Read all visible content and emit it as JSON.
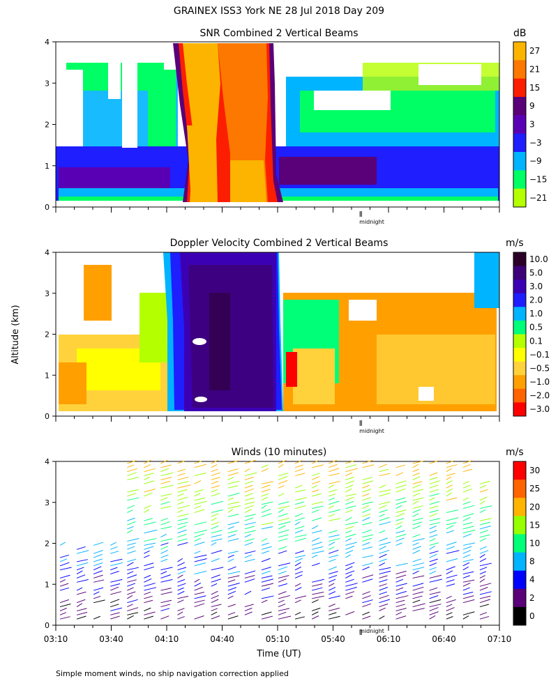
{
  "figure_title": "GRAINEX ISS3 York NE  28 Jul 2018 Day 209",
  "shared_y_label": "Altitude (km)",
  "time_label": "Time (UT)",
  "footnote": "Simple moment winds, no ship navigation correction applied",
  "midnight_label": "midnight",
  "chart_data": [
    {
      "type": "heatmap",
      "title": "SNR Combined 2 Vertical Beams",
      "colorbar_unit": "dB",
      "colorbar_ticks": [
        "27",
        "21",
        "15",
        "9",
        "3",
        "−3",
        "−9",
        "−15",
        "−21"
      ],
      "colorbar_colors": [
        "#fcb400",
        "#fc7800",
        "#fc1e00",
        "#5a0078",
        "#5a00b4",
        "#1e1eff",
        "#00b4ff",
        "#00ff64",
        "#b4ff00"
      ],
      "y_ticks": [
        "0",
        "1",
        "2",
        "3",
        "4"
      ],
      "ylim": [
        0,
        4
      ],
      "x_range": [
        "03:10",
        "07:10"
      ]
    },
    {
      "type": "heatmap",
      "title": "Doppler Velocity Combined 2 Vertical Beams",
      "colorbar_unit": "m/s",
      "colorbar_ticks": [
        "10.0",
        "5.0",
        "3.0",
        "2.0",
        "1.0",
        "0.5",
        "0.1",
        "−0.1",
        "−0.5",
        "−1.0",
        "−2.0",
        "−3.0"
      ],
      "colorbar_colors": [
        "#2a0028",
        "#3c0078",
        "#3c00b4",
        "#1e1eff",
        "#00b4ff",
        "#00ff78",
        "#b4ff00",
        "#ffff00",
        "#ffd23c",
        "#ffa000",
        "#ff6400",
        "#ff0000"
      ],
      "y_ticks": [
        "0",
        "1",
        "2",
        "3",
        "4"
      ],
      "ylim": [
        0,
        4
      ],
      "x_range": [
        "03:10",
        "07:10"
      ]
    },
    {
      "type": "scatter",
      "title": "Winds (10 minutes)",
      "colorbar_unit": "m/s",
      "colorbar_ticks": [
        "30",
        "25",
        "20",
        "15",
        "10",
        "8",
        "4",
        "2",
        "0"
      ],
      "colorbar_colors": [
        "#ff0000",
        "#ff6400",
        "#ffb400",
        "#96ff00",
        "#00ff78",
        "#00b4ff",
        "#0000ff",
        "#5a0078",
        "#000000"
      ],
      "y_ticks": [
        "0",
        "1",
        "2",
        "3",
        "4"
      ],
      "ylim": [
        0,
        4
      ],
      "x_tick_labels": [
        "03:10",
        "03:40",
        "04:10",
        "04:40",
        "05:10",
        "05:40",
        "06:10",
        "06:40",
        "07:10"
      ],
      "x_range": [
        "03:10",
        "07:10"
      ]
    }
  ]
}
